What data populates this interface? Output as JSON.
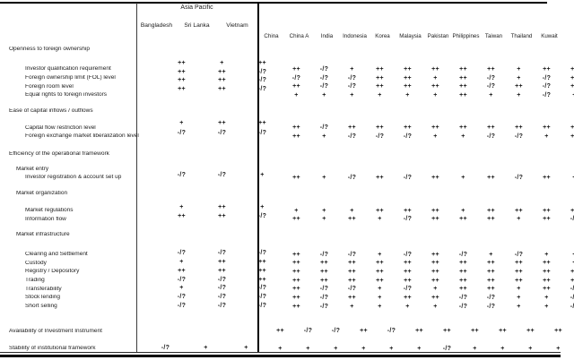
{
  "table": {
    "group_header": "Asia Pacific",
    "ap_markets": [
      "Bangladesh",
      "Sri Lanka",
      "Vietnam"
    ],
    "markets": [
      "China",
      "China A",
      "India",
      "Indonesia",
      "Korea",
      "Malaysia",
      "Pakistan",
      "Philippines",
      "Taiwan",
      "Thailand",
      "Kuwait"
    ],
    "symbols": [
      "++",
      "+",
      "-/?"
    ],
    "rows": [
      {
        "label": "Openness to foreign ownership",
        "level": 0
      },
      {
        "label": "Investor qualification requirement",
        "level": 2,
        "ap": [
          "++",
          "+",
          "++"
        ],
        "values": [
          "++",
          "-/?",
          "+",
          "++",
          "++",
          "++",
          "++",
          "++",
          "+",
          "++",
          "++"
        ]
      },
      {
        "label": "Foreign ownership limit (FOL) level",
        "level": 2,
        "ap": [
          "++",
          "++",
          "-/?"
        ],
        "values": [
          "-/?",
          "-/?",
          "-/?",
          "++",
          "++",
          "+",
          "++",
          "-/?",
          "+",
          "-/?",
          "++"
        ]
      },
      {
        "label": "Foreign room level",
        "level": 2,
        "ap": [
          "++",
          "++",
          "-/?"
        ],
        "values": [
          "++",
          "-/?",
          "-/?",
          "++",
          "++",
          "++",
          "++",
          "-/?",
          "++",
          "-/?",
          "++"
        ]
      },
      {
        "label": "Equal rights to foreign investors",
        "level": 2,
        "ap": [
          "++",
          "++",
          "-/?"
        ],
        "values": [
          "+",
          "+",
          "+",
          "+",
          "+",
          "+",
          "++",
          "+",
          "+",
          "-/?",
          "+"
        ]
      },
      {
        "label": "Ease of capital inflows / outflows",
        "level": 0
      },
      {
        "label": "Capital flow restriction level",
        "level": 2,
        "ap": [
          "+",
          "++",
          "++"
        ],
        "values": [
          "++",
          "-/?",
          "++",
          "++",
          "++",
          "++",
          "++",
          "++",
          "++",
          "++",
          "++"
        ]
      },
      {
        "label": "Foreign exchange market liberalization level",
        "level": 2,
        "ap": [
          "-/?",
          "-/?",
          "-/?"
        ],
        "values": [
          "++",
          "+",
          "-/?",
          "-/?",
          "-/?",
          "+",
          "+",
          "-/?",
          "-/?",
          "+",
          "++"
        ]
      },
      {
        "label": "Efficiency of the operational framework",
        "level": 0
      },
      {
        "label": "Market entry",
        "level": 1
      },
      {
        "label": "Investor registration & account set up",
        "level": 2,
        "ap": [
          "-/?",
          "-/?",
          "+"
        ],
        "values": [
          "++",
          "+",
          "-/?",
          "++",
          "-/?",
          "++",
          "+",
          "++",
          "-/?",
          "++",
          "+"
        ]
      },
      {
        "label": "Market organization",
        "level": 1
      },
      {
        "label": "Market regulations",
        "level": 2,
        "ap": [
          "+",
          "++",
          "+"
        ],
        "values": [
          "+",
          "+",
          "+",
          "++",
          "++",
          "++",
          "+",
          "++",
          "++",
          "++",
          "++"
        ]
      },
      {
        "label": "Information flow",
        "level": 2,
        "ap": [
          "++",
          "++",
          "-/?"
        ],
        "values": [
          "++",
          "+",
          "++",
          "+",
          "-/?",
          "++",
          "++",
          "++",
          "+",
          "++",
          "-/?"
        ]
      },
      {
        "label": "Market infrastructure",
        "level": 1
      },
      {
        "label": "Clearing and Settlement",
        "level": 2,
        "ap": [
          "-/?",
          "-/?",
          "-/?"
        ],
        "values": [
          "++",
          "-/?",
          "-/?",
          "+",
          "-/?",
          "++",
          "-/?",
          "+",
          "-/?",
          "+",
          "+"
        ]
      },
      {
        "label": "Custody",
        "level": 2,
        "ap": [
          "+",
          "++",
          "++"
        ],
        "values": [
          "++",
          "++",
          "++",
          "++",
          "++",
          "++",
          "++",
          "++",
          "++",
          "++",
          "+"
        ]
      },
      {
        "label": "Registry / Depository",
        "level": 2,
        "ap": [
          "++",
          "++",
          "++"
        ],
        "values": [
          "++",
          "++",
          "++",
          "++",
          "++",
          "++",
          "++",
          "++",
          "++",
          "++",
          "++"
        ]
      },
      {
        "label": "Trading",
        "level": 2,
        "ap": [
          "-/?",
          "-/?",
          "++"
        ],
        "values": [
          "++",
          "++",
          "++",
          "++",
          "++",
          "++",
          "++",
          "++",
          "++",
          "++",
          "++"
        ]
      },
      {
        "label": "Transferability",
        "level": 2,
        "ap": [
          "+",
          "-/?",
          "-/?"
        ],
        "values": [
          "++",
          "-/?",
          "-/?",
          "+",
          "-/?",
          "+",
          "++",
          "++",
          "+",
          "++",
          "-/?"
        ]
      },
      {
        "label": "Stock lending",
        "level": 2,
        "ap": [
          "-/?",
          "-/?",
          "-/?"
        ],
        "values": [
          "++",
          "-/?",
          "++",
          "+",
          "++",
          "++",
          "-/?",
          "-/?",
          "+",
          "+",
          "-/?"
        ]
      },
      {
        "label": "Short selling",
        "level": 2,
        "ap": [
          "-/?",
          "-/?",
          "-/?"
        ],
        "values": [
          "++",
          "-/?",
          "+",
          "+",
          "+",
          "+",
          "-/?",
          "-/?",
          "+",
          "+",
          "-/?"
        ]
      },
      {
        "label": "Availability of Investment Instrument",
        "level": 0,
        "ap": [
          "",
          "",
          ""
        ],
        "values": [
          "++",
          "-/?",
          "-/?",
          "++",
          "-/?",
          "++",
          "++",
          "++",
          "++",
          "++",
          "++"
        ]
      },
      {
        "label": "Stability of institutional framework",
        "level": 0,
        "ap": [
          "-/?",
          "+",
          "+"
        ],
        "values": [
          "+",
          "+",
          "+",
          "+",
          "+",
          "+",
          "-/?",
          "+",
          "+",
          "+",
          "+"
        ]
      }
    ]
  }
}
